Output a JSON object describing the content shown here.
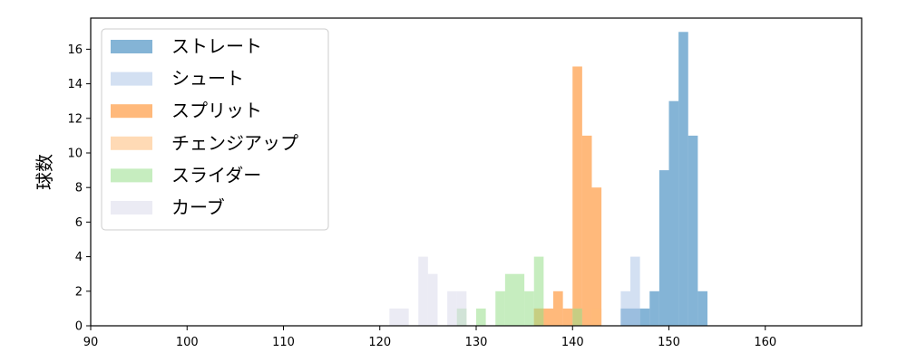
{
  "chart_data": {
    "type": "histogram",
    "title": "",
    "xlabel": "",
    "ylabel": "球数",
    "xlim": [
      90,
      170
    ],
    "ylim": [
      0,
      17.8
    ],
    "xticks": [
      90,
      100,
      110,
      120,
      130,
      140,
      150,
      160
    ],
    "yticks": [
      0,
      2,
      4,
      6,
      8,
      10,
      12,
      14,
      16
    ],
    "grid": false,
    "legend_position": "top-left",
    "bin_width": 1,
    "series": [
      {
        "name": "ストレート",
        "color": "#1f77b4",
        "bins": [
          {
            "x": 145,
            "count": 1
          },
          {
            "x": 146,
            "count": 1
          },
          {
            "x": 147,
            "count": 1
          },
          {
            "x": 148,
            "count": 2
          },
          {
            "x": 149,
            "count": 9
          },
          {
            "x": 150,
            "count": 13
          },
          {
            "x": 151,
            "count": 17
          },
          {
            "x": 152,
            "count": 11
          },
          {
            "x": 153,
            "count": 2
          }
        ]
      },
      {
        "name": "シュート",
        "color": "#aec7e8",
        "bins": [
          {
            "x": 145,
            "count": 2
          },
          {
            "x": 146,
            "count": 4
          }
        ]
      },
      {
        "name": "スプリット",
        "color": "#ff7f0e",
        "bins": [
          {
            "x": 136,
            "count": 1
          },
          {
            "x": 137,
            "count": 1
          },
          {
            "x": 138,
            "count": 2
          },
          {
            "x": 139,
            "count": 1
          },
          {
            "x": 140,
            "count": 15
          },
          {
            "x": 141,
            "count": 11
          },
          {
            "x": 142,
            "count": 8
          }
        ]
      },
      {
        "name": "チェンジアップ",
        "color": "#ffbb78",
        "bins": [
          {
            "x": 136,
            "count": 1
          },
          {
            "x": 142,
            "count": 1
          }
        ]
      },
      {
        "name": "スライダー",
        "color": "#98df8a",
        "bins": [
          {
            "x": 128,
            "count": 1
          },
          {
            "x": 130,
            "count": 1
          },
          {
            "x": 132,
            "count": 2
          },
          {
            "x": 133,
            "count": 3
          },
          {
            "x": 134,
            "count": 3
          },
          {
            "x": 135,
            "count": 2
          },
          {
            "x": 136,
            "count": 4
          },
          {
            "x": 140,
            "count": 1
          }
        ]
      },
      {
        "name": "カーブ",
        "color": "#dadaeb",
        "bins": [
          {
            "x": 121,
            "count": 1
          },
          {
            "x": 122,
            "count": 1
          },
          {
            "x": 124,
            "count": 4
          },
          {
            "x": 125,
            "count": 3
          },
          {
            "x": 127,
            "count": 2
          },
          {
            "x": 128,
            "count": 2
          }
        ]
      }
    ]
  }
}
